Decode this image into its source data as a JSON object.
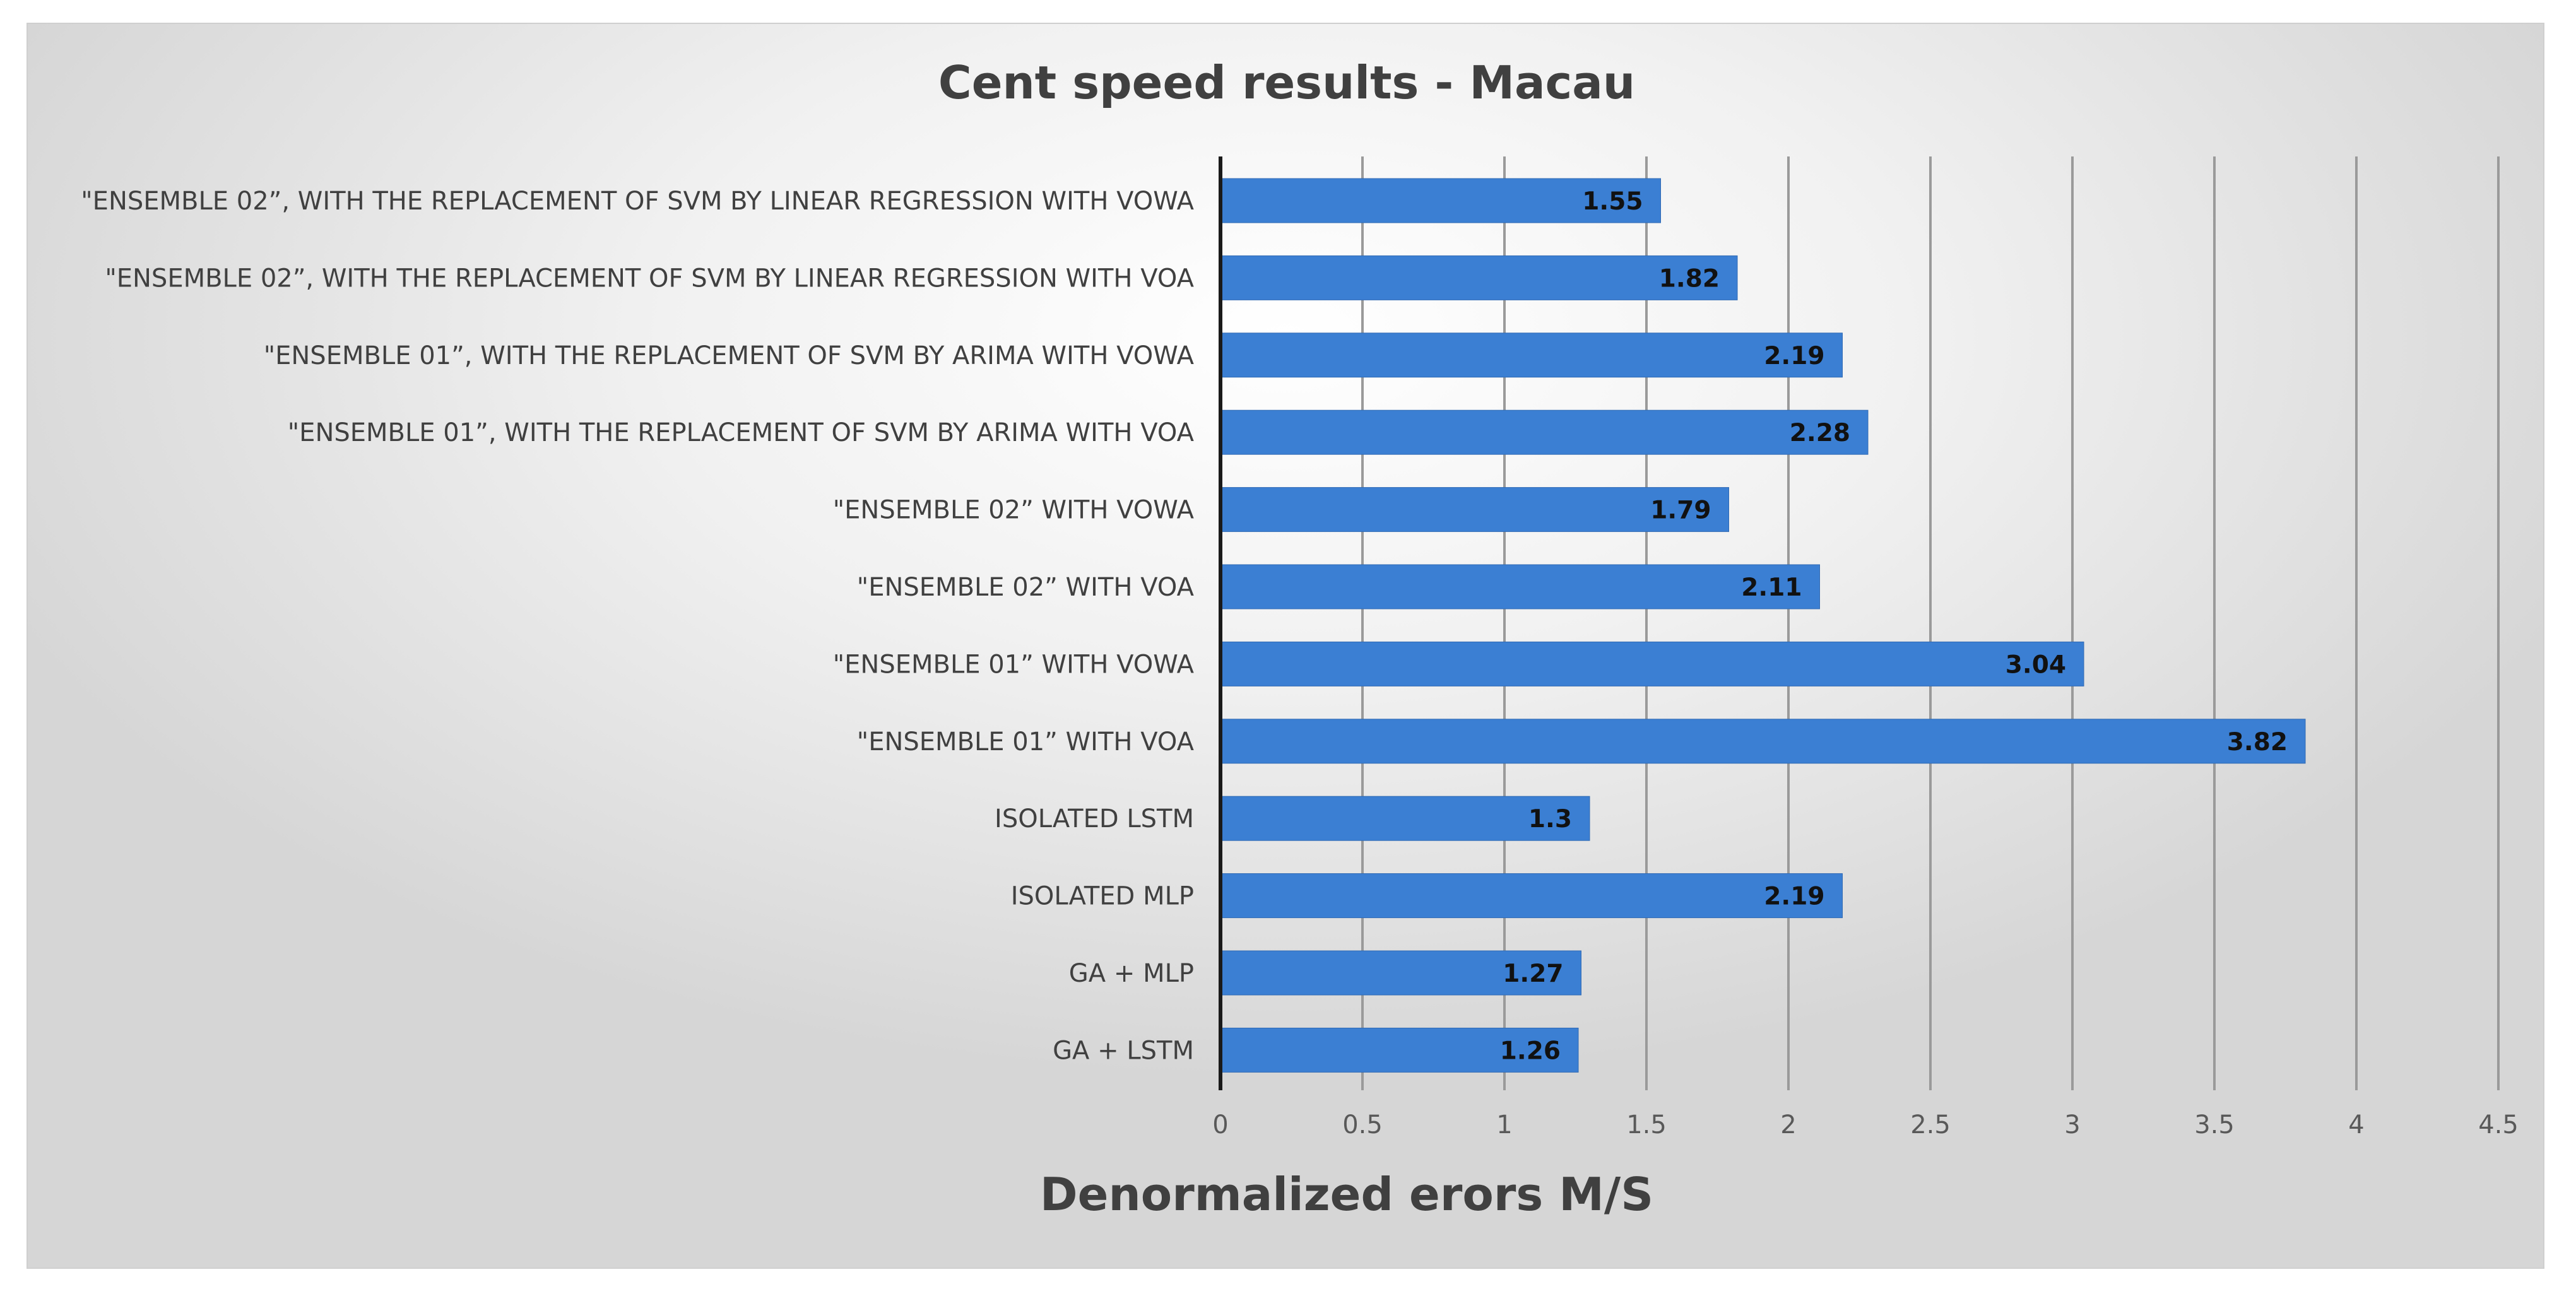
{
  "chart_data": {
    "type": "bar",
    "orientation": "horizontal",
    "title": "Cent speed results - Macau",
    "xlabel": "Denormalized erors M/S",
    "ylabel": "",
    "xlim": [
      0,
      4.5
    ],
    "xticks": [
      "0",
      "0.5",
      "1",
      "1.5",
      "2",
      "2.5",
      "3",
      "3.5",
      "4",
      "4.5"
    ],
    "grid": true,
    "legend": "none",
    "bar_color": "#3b7fd3",
    "categories": [
      "\"ENSEMBLE 02”, WITH THE REPLACEMENT OF SVM BY LINEAR REGRESSION WITH VOWA",
      "\"ENSEMBLE 02”, WITH THE REPLACEMENT OF SVM BY LINEAR REGRESSION WITH VOA",
      "\"ENSEMBLE 01”, WITH THE REPLACEMENT OF SVM BY ARIMA WITH VOWA",
      "\"ENSEMBLE 01”, WITH THE REPLACEMENT OF SVM BY ARIMA WITH VOA",
      "\"ENSEMBLE 02” WITH VOWA",
      "\"ENSEMBLE 02” WITH VOA",
      "\"ENSEMBLE 01” WITH VOWA",
      "\"ENSEMBLE 01” WITH VOA",
      "ISOLATED LSTM",
      "ISOLATED MLP",
      "GA + MLP",
      "GA + LSTM"
    ],
    "values": [
      1.55,
      1.82,
      2.19,
      2.28,
      1.79,
      2.11,
      3.04,
      3.82,
      1.3,
      2.19,
      1.27,
      1.26
    ],
    "data_labels": [
      "1.55",
      "1.82",
      "2.19",
      "2.28",
      "1.79",
      "2.11",
      "3.04",
      "3.82",
      "1.3",
      "2.19",
      "1.27",
      "1.26"
    ]
  }
}
